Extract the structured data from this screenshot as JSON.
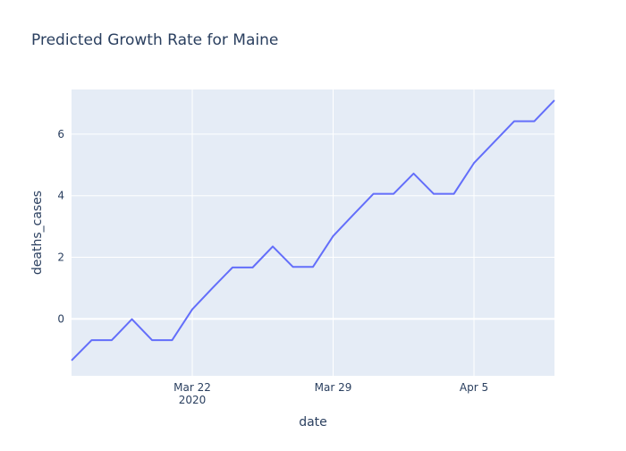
{
  "chart_data": {
    "type": "line",
    "title": "Predicted Growth Rate for Maine",
    "xlabel": "date",
    "ylabel": "deaths_cases",
    "x_tick_labels": [
      {
        "date": "2020-03-22",
        "label": "Mar 22",
        "sublabel": "2020"
      },
      {
        "date": "2020-03-29",
        "label": "Mar 29",
        "sublabel": ""
      },
      {
        "date": "2020-04-05",
        "label": "Apr 5",
        "sublabel": ""
      }
    ],
    "y_ticks": [
      0,
      2,
      4,
      6
    ],
    "xlim": [
      "2020-03-16",
      "2020-04-09"
    ],
    "ylim": [
      -1.85,
      7.45
    ],
    "grid": true,
    "colors": {
      "plot_background": "#e5ecf6",
      "grid": "#ffffff",
      "line": "#636efa",
      "text": "#2a3f5f"
    },
    "series": [
      {
        "x": [
          "2020-03-16",
          "2020-03-17",
          "2020-03-18",
          "2020-03-19",
          "2020-03-20",
          "2020-03-21",
          "2020-03-22",
          "2020-03-23",
          "2020-03-24",
          "2020-03-25",
          "2020-03-26",
          "2020-03-27",
          "2020-03-28",
          "2020-03-29",
          "2020-03-30",
          "2020-03-31",
          "2020-04-01",
          "2020-04-02",
          "2020-04-03",
          "2020-04-04",
          "2020-04-05",
          "2020-04-06",
          "2020-04-07",
          "2020-04-08",
          "2020-04-09"
        ],
        "values": [
          -1.35,
          -0.69,
          -0.69,
          -0.01,
          -0.69,
          -0.69,
          0.31,
          1.0,
          1.67,
          1.67,
          2.35,
          1.69,
          1.69,
          2.69,
          3.38,
          4.06,
          4.06,
          4.72,
          4.06,
          4.06,
          5.06,
          5.74,
          6.42,
          6.42,
          7.1
        ]
      }
    ]
  }
}
